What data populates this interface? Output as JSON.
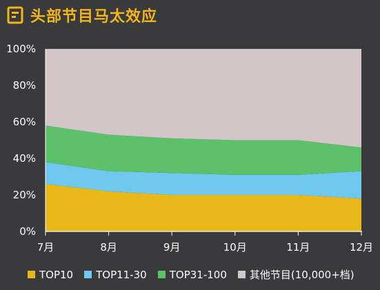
{
  "header": {
    "title": "头部节目马太效应",
    "icon": "document-icon"
  },
  "colors": {
    "accent": "#f3b61a",
    "background": "#3a3a3c",
    "TOP10": "#e8b818",
    "TOP11-30": "#6fc8ee",
    "TOP31-100": "#5dc06a",
    "other": "#d3c6c8"
  },
  "chart_data": {
    "type": "area",
    "stacked": true,
    "categories": [
      "7月",
      "8月",
      "9月",
      "10月",
      "11月",
      "12月"
    ],
    "y_tick_labels": [
      "0%",
      "20%",
      "40%",
      "60%",
      "80%",
      "100%"
    ],
    "ylim": [
      0,
      100
    ],
    "grid": false,
    "legend_position": "bottom",
    "series": [
      {
        "name": "TOP10",
        "values": [
          26,
          22,
          20,
          20,
          20,
          18
        ]
      },
      {
        "name": "TOP11-30",
        "values": [
          12,
          11,
          12,
          11,
          11,
          15
        ]
      },
      {
        "name": "TOP31-100",
        "values": [
          20,
          20,
          19,
          19,
          19,
          13
        ]
      },
      {
        "name": "其他节目(10,000+档)",
        "values": [
          42,
          47,
          49,
          50,
          50,
          54
        ]
      }
    ]
  }
}
